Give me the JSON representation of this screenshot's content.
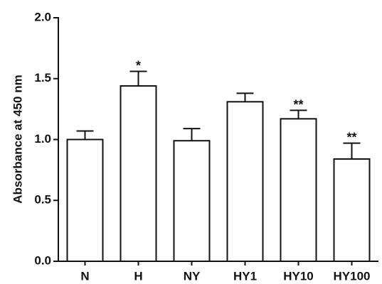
{
  "chart_data": {
    "type": "bar",
    "ylabel": "Absorbance at 450 nm",
    "xlabel": "",
    "ylim": [
      0,
      2.0
    ],
    "yticks": [
      "0.0",
      "0.5",
      "1.0",
      "1.5",
      "2.0"
    ],
    "categories": [
      "N",
      "H",
      "NY",
      "HY1",
      "HY10",
      "HY100"
    ],
    "values": [
      1.0,
      1.44,
      0.99,
      1.31,
      1.17,
      0.84
    ],
    "errors": [
      0.07,
      0.12,
      0.1,
      0.07,
      0.07,
      0.13
    ],
    "annotations": [
      "",
      "*",
      "",
      "",
      "**",
      "**"
    ],
    "grid": false,
    "legend": "none"
  }
}
